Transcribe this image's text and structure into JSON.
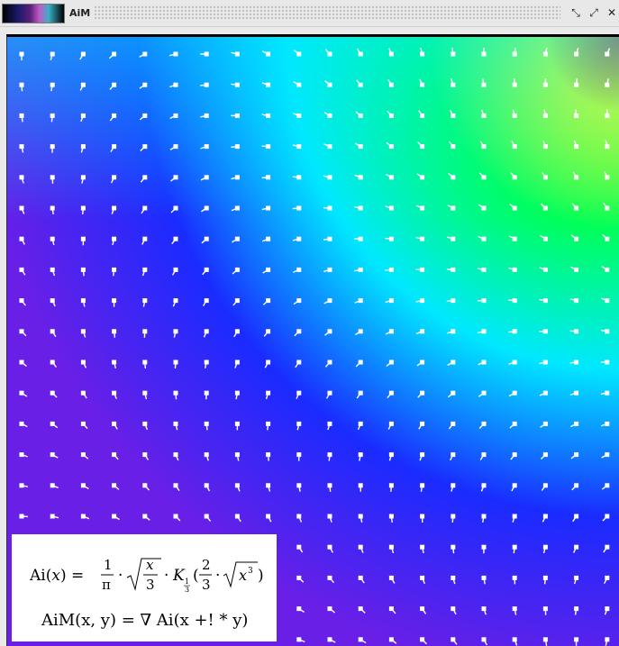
{
  "window": {
    "title": "AiM",
    "buttons": [
      {
        "name": "minimize",
        "glyph": "⤡"
      },
      {
        "name": "maximize",
        "glyph": "⤢"
      },
      {
        "name": "close",
        "glyph": "✕"
      }
    ]
  },
  "plot": {
    "colormap": [
      "#6a1fe6",
      "#1a2bff",
      "#00e8ff",
      "#00ff5a",
      "#f0ff00",
      "#ff3300"
    ],
    "arrow_color": "#ffffff",
    "grid": {
      "columns": 20,
      "rows": 20
    }
  },
  "formulas": {
    "airy_definition": "Ai(x) = 1/π · √(x/3) · K₁/₃(2/3 · √(x³))",
    "aim_definition": "AiM(x, y) = ∇ Ai(x +! * y)"
  }
}
